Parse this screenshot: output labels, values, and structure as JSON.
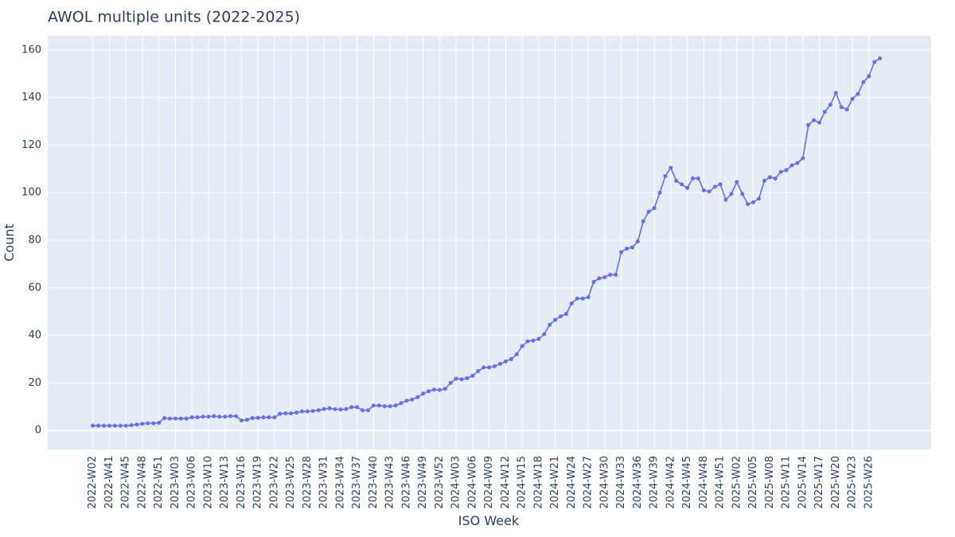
{
  "chart_data": {
    "type": "line",
    "title": "AWOL multiple units (2022-2025)",
    "x_title": "ISO Week",
    "y_title": "Count",
    "categories": [
      "2022-W02",
      null,
      null,
      "2022-W41",
      null,
      null,
      "2022-W45",
      null,
      null,
      "2022-W48",
      null,
      null,
      "2022-W51",
      null,
      null,
      "2023-W03",
      null,
      null,
      "2023-W06",
      null,
      null,
      "2023-W10",
      null,
      null,
      "2023-W13",
      null,
      null,
      "2023-W16",
      null,
      null,
      "2023-W19",
      null,
      null,
      "2023-W22",
      null,
      null,
      "2023-W25",
      null,
      null,
      "2023-W28",
      null,
      null,
      "2023-W31",
      null,
      null,
      "2023-W34",
      null,
      null,
      "2023-W37",
      null,
      null,
      "2023-W40",
      null,
      null,
      "2023-W43",
      null,
      null,
      "2023-W46",
      null,
      null,
      "2023-W49",
      null,
      null,
      "2023-W52",
      null,
      null,
      "2024-W03",
      null,
      null,
      "2024-W06",
      null,
      null,
      "2024-W09",
      null,
      null,
      "2024-W12",
      null,
      null,
      "2024-W15",
      null,
      null,
      "2024-W18",
      null,
      null,
      "2024-W21",
      null,
      null,
      "2024-W24",
      null,
      null,
      "2024-W27",
      null,
      null,
      "2024-W30",
      null,
      null,
      "2024-W33",
      null,
      null,
      "2024-W36",
      null,
      null,
      "2024-W39",
      null,
      null,
      "2024-W42",
      null,
      null,
      "2024-W45",
      null,
      null,
      "2024-W48",
      null,
      null,
      "2024-W51",
      null,
      null,
      "2025-W02",
      null,
      null,
      "2025-W05",
      null,
      null,
      "2025-W08",
      null,
      null,
      "2025-W11",
      null,
      null,
      "2025-W14",
      null,
      null,
      "2025-W17",
      null,
      null,
      "2025-W20",
      null,
      null,
      "2025-W23",
      null,
      null,
      "2025-W26",
      null,
      null
    ],
    "series": [
      {
        "name": "Count",
        "color": "#636efa",
        "values": [
          2,
          2,
          2,
          2,
          2,
          2,
          2,
          2.2,
          2.5,
          2.8,
          3,
          3,
          3.2,
          5.2,
          5,
          5,
          5,
          5,
          5.5,
          5.5,
          5.8,
          5.8,
          6,
          5.8,
          5.8,
          6,
          6,
          4.2,
          4.5,
          5.2,
          5.3,
          5.5,
          5.5,
          5.5,
          7,
          7.2,
          7.2,
          7.5,
          8,
          8,
          8.2,
          8.5,
          9,
          9.3,
          9,
          8.8,
          9,
          9.8,
          9.8,
          8.5,
          8.5,
          10.5,
          10.5,
          10.2,
          10.2,
          10.5,
          11.5,
          12.5,
          13,
          14,
          15.5,
          16.5,
          17.2,
          17,
          17.5,
          20,
          21.8,
          21.5,
          22,
          23,
          25,
          26.5,
          26.5,
          27,
          28,
          29,
          30,
          32,
          35.5,
          37.5,
          37.8,
          38.5,
          40.5,
          44.5,
          46.5,
          48,
          49,
          53.5,
          55.5,
          55.5,
          56,
          62.5,
          64,
          64.5,
          65.5,
          65.5,
          75,
          76.5,
          77,
          79.5,
          88,
          92,
          93.5,
          100,
          107,
          110.5,
          105,
          103.5,
          102,
          106,
          106,
          101,
          100.5,
          102.5,
          103.5,
          97,
          99.5,
          104.5,
          99.5,
          95.2,
          96,
          97.5,
          105,
          106.5,
          106,
          108.8,
          109.5,
          111.5,
          112.5,
          114.5,
          128.5,
          130.5,
          129.5,
          134,
          137,
          142,
          136,
          135,
          139.5,
          141.5,
          146.5,
          149,
          155,
          156.5
        ]
      }
    ],
    "ylim": [
      -8,
      166
    ],
    "yticks": [
      0,
      20,
      40,
      60,
      80,
      100,
      120,
      140,
      160
    ],
    "grid": true
  }
}
